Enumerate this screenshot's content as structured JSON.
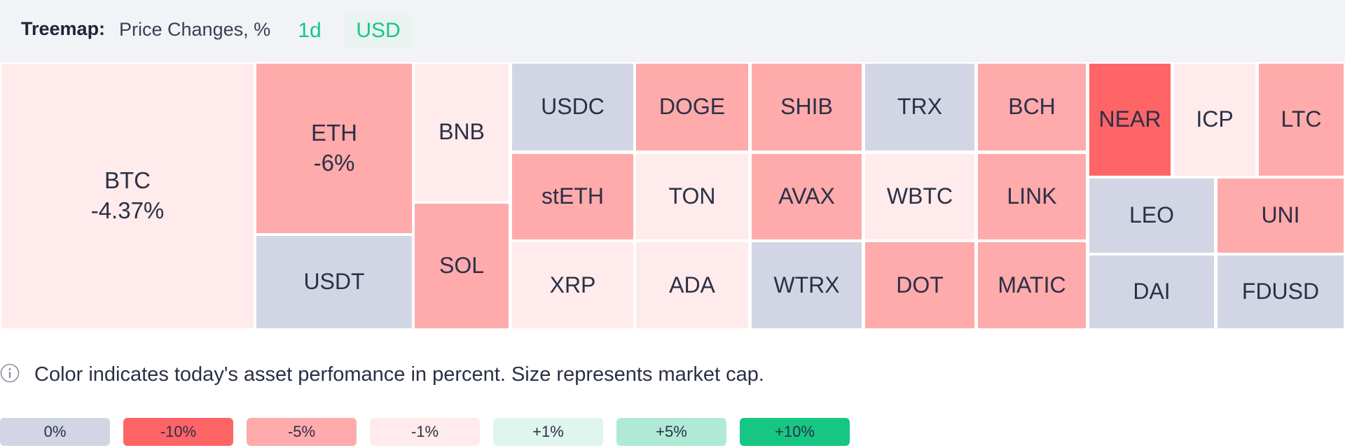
{
  "header": {
    "title": "Treemap:",
    "metric": "Price Changes, %",
    "period": "1d",
    "currency": "USD"
  },
  "colors": {
    "neutral": "#d2d6e4",
    "neg10": "#ff6467",
    "neg5": "#ffaaab",
    "neg1": "#ffebeb",
    "pos1": "#dff5ee",
    "pos5": "#b0ead6",
    "pos10": "#16c784",
    "accent": "#16c784"
  },
  "treemap": {
    "cells": [
      {
        "symbol": "BTC",
        "change": "-4.37%"
      },
      {
        "symbol": "ETH",
        "change": "-6%"
      },
      {
        "symbol": "USDT",
        "change": ""
      },
      {
        "symbol": "BNB",
        "change": ""
      },
      {
        "symbol": "SOL",
        "change": ""
      },
      {
        "symbol": "USDC",
        "change": ""
      },
      {
        "symbol": "stETH",
        "change": ""
      },
      {
        "symbol": "XRP",
        "change": ""
      },
      {
        "symbol": "DOGE",
        "change": ""
      },
      {
        "symbol": "TON",
        "change": ""
      },
      {
        "symbol": "ADA",
        "change": ""
      },
      {
        "symbol": "SHIB",
        "change": ""
      },
      {
        "symbol": "AVAX",
        "change": ""
      },
      {
        "symbol": "WTRX",
        "change": ""
      },
      {
        "symbol": "TRX",
        "change": ""
      },
      {
        "symbol": "WBTC",
        "change": ""
      },
      {
        "symbol": "DOT",
        "change": ""
      },
      {
        "symbol": "BCH",
        "change": ""
      },
      {
        "symbol": "LINK",
        "change": ""
      },
      {
        "symbol": "MATIC",
        "change": ""
      },
      {
        "symbol": "NEAR",
        "change": ""
      },
      {
        "symbol": "ICP",
        "change": ""
      },
      {
        "symbol": "LTC",
        "change": ""
      },
      {
        "symbol": "LEO",
        "change": ""
      },
      {
        "symbol": "UNI",
        "change": ""
      },
      {
        "symbol": "DAI",
        "change": ""
      },
      {
        "symbol": "FDUSD",
        "change": ""
      }
    ]
  },
  "note": {
    "icon": "info-icon",
    "text": "Color indicates today's asset perfomance in percent. Size represents market cap."
  },
  "legend": {
    "items": [
      "0%",
      "-10%",
      "-5%",
      "-1%",
      "+1%",
      "+5%",
      "+10%"
    ]
  }
}
